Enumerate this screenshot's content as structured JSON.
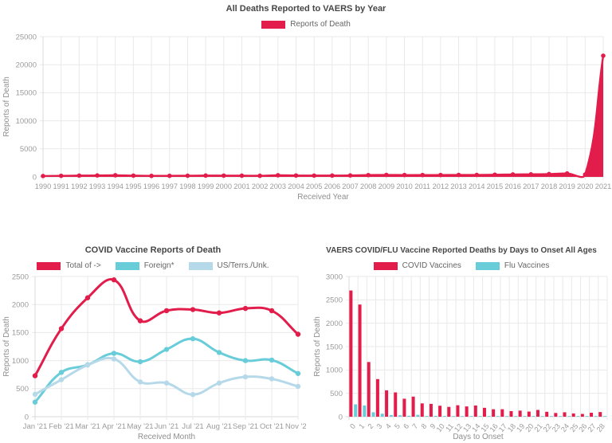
{
  "colors": {
    "red": "#e21d4b",
    "teal": "#68ccd9",
    "light_blue": "#b6d9ea",
    "grid": "#e9e9e9",
    "axis": "#d8d8d8",
    "tick_text": "#9b9b9b",
    "axis_title_text": "#8f8f8f",
    "chart_title_text": "#464646",
    "legend_text": "#666666"
  },
  "chart_data": [
    {
      "type": "area",
      "title": "All Deaths Reported to VAERS by Year",
      "xlabel": "Received Year",
      "ylabel": "Reports of Death",
      "ylim": [
        0,
        25000
      ],
      "ytick_step": 5000,
      "grid": true,
      "legend_position": "top",
      "categories": [
        "1990",
        "1991",
        "1992",
        "1993",
        "1994",
        "1995",
        "1996",
        "1997",
        "1998",
        "1999",
        "2000",
        "2001",
        "2002",
        "2003",
        "2004",
        "2005",
        "2006",
        "2007",
        "2008",
        "2009",
        "2010",
        "2011",
        "2012",
        "2013",
        "2014",
        "2015",
        "2016",
        "2017",
        "2018",
        "2019",
        "2020",
        "2021"
      ],
      "series": [
        {
          "name": "Reports of Death",
          "color": "#e21d4b",
          "fill": true,
          "values": [
            150,
            190,
            230,
            255,
            290,
            225,
            180,
            190,
            205,
            235,
            225,
            215,
            200,
            290,
            245,
            230,
            235,
            255,
            320,
            345,
            330,
            335,
            335,
            345,
            345,
            385,
            430,
            455,
            505,
            610,
            420,
            21600
          ]
        }
      ]
    },
    {
      "type": "line",
      "title": "COVID Vaccine Reports of Death",
      "xlabel": "Received Month",
      "ylabel": "Reports of Death",
      "ylim": [
        0,
        2500
      ],
      "ytick_step": 500,
      "grid": true,
      "legend_position": "top",
      "categories": [
        "Jan '21",
        "Feb '21",
        "Mar '21",
        "Apr '21",
        "May '21",
        "Jun '21",
        "Jul '21",
        "Aug '21",
        "Sep '21",
        "Oct '21",
        "Nov '21"
      ],
      "series": [
        {
          "name": "Total of ->",
          "color": "#e21d4b",
          "fill": false,
          "values": [
            730,
            1570,
            2120,
            2440,
            1710,
            1890,
            1910,
            1850,
            1930,
            1890,
            1470
          ]
        },
        {
          "name": "Foreign*",
          "color": "#68ccd9",
          "fill": false,
          "values": [
            260,
            790,
            925,
            1130,
            980,
            1200,
            1390,
            1145,
            1000,
            1010,
            770
          ]
        },
        {
          "name": "US/Terrs./Unk.",
          "color": "#b6d9ea",
          "fill": false,
          "values": [
            400,
            660,
            920,
            1030,
            620,
            600,
            395,
            600,
            710,
            675,
            540
          ]
        }
      ]
    },
    {
      "type": "bar",
      "title": "VAERS COVID/FLU Vaccine Reported Deaths by Days to Onset All Ages",
      "xlabel": "Days to Onset",
      "ylabel": "Reports of Death",
      "ylim": [
        0,
        3000
      ],
      "ytick_step": 500,
      "grid": true,
      "legend_position": "top",
      "rotate_x_labels": true,
      "categories": [
        "0",
        "1",
        "2",
        "3",
        "4",
        "5",
        "6",
        "7",
        "8",
        "9",
        "10",
        "11",
        "12",
        "13",
        "14",
        "15",
        "16",
        "17",
        "18",
        "19",
        "20",
        "21",
        "22",
        "23",
        "24",
        "25",
        "26",
        "27",
        "28"
      ],
      "series": [
        {
          "name": "COVID Vaccines",
          "color": "#e21d4b",
          "values": [
            2700,
            2400,
            1170,
            805,
            565,
            520,
            385,
            430,
            285,
            275,
            235,
            210,
            245,
            220,
            240,
            190,
            160,
            160,
            120,
            130,
            110,
            145,
            105,
            80,
            95,
            70,
            60,
            85,
            100
          ]
        },
        {
          "name": "Flu Vaccines",
          "color": "#68ccd9",
          "values": [
            265,
            240,
            95,
            65,
            35,
            30,
            20,
            40,
            15,
            18,
            15,
            8,
            12,
            14,
            12,
            6,
            5,
            5,
            4,
            4,
            5,
            4,
            3,
            3,
            4,
            2,
            2,
            3,
            3
          ]
        }
      ]
    }
  ]
}
